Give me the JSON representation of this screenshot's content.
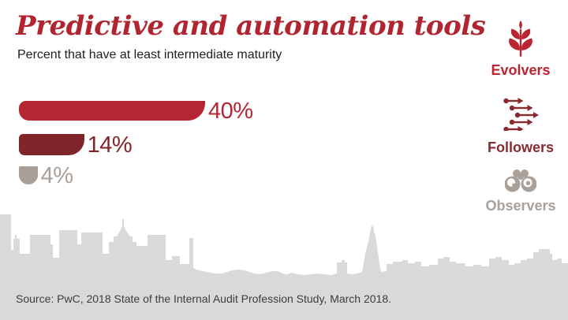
{
  "title": "Predictive and automation tools",
  "subtitle": "Percent that have at least intermediate maturity",
  "source_note": "Source: PwC, 2018 State of the Internal Audit Profession Study, March 2018.",
  "colors": {
    "title_red": "#b12531",
    "subtitle_text": "#1e1e1e",
    "bar_evolvers": "#b52532",
    "bar_followers": "#802529",
    "bar_observers": "#a8a098",
    "legend_evolvers": "#bb2431",
    "legend_followers": "#872b2e",
    "legend_observers": "#a9a199",
    "skyline_gray": "#d9d9d9",
    "source_text": "#3d3d3d"
  },
  "chart_data": {
    "type": "bar",
    "orientation": "horizontal",
    "title": "Predictive and automation tools",
    "subtitle": "Percent that have at least intermediate maturity",
    "categories": [
      "Evolvers",
      "Followers",
      "Observers"
    ],
    "values": [
      40,
      14,
      4
    ],
    "unit": "percent",
    "value_labels": [
      "40%",
      "14%",
      "4%"
    ],
    "bar_colors": [
      "#b52532",
      "#802529",
      "#a8a098"
    ],
    "xlim": [
      0,
      100
    ],
    "gridlines": false,
    "axes_shown": false,
    "legend_position": "right"
  },
  "legend": {
    "items": [
      {
        "label": "Evolvers",
        "icon": "wheat-plant-icon",
        "color": "#bb2431"
      },
      {
        "label": "Followers",
        "icon": "forward-arrows-icon",
        "color": "#872b2e"
      },
      {
        "label": "Observers",
        "icon": "binoculars-icon",
        "color": "#a9a199"
      }
    ]
  }
}
